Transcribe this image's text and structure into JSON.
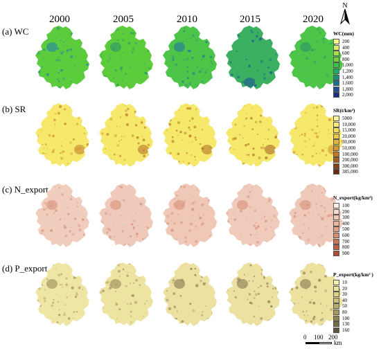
{
  "years": [
    "2000",
    "2005",
    "2010",
    "2015",
    "2020"
  ],
  "north_label": "N",
  "rows": [
    {
      "label": "(a) WC",
      "legend_title": "WC(mm)",
      "legend_values": [
        "200",
        "400",
        "600",
        "800",
        "1,000",
        "1,200",
        "1,400",
        "1,600",
        "1,800",
        "2,000"
      ],
      "legend_colors": [
        "#f7f58c",
        "#d6ee6a",
        "#a8e04a",
        "#72d13c",
        "#3cc24a",
        "#1fae64",
        "#17907a",
        "#1a6f8c",
        "#1e4d99",
        "#1b2f80"
      ],
      "fill": [
        "#5ccc3c",
        "#5ccc3c",
        "#4cc548",
        "#3bb060",
        "#4cc548"
      ],
      "accent": [
        "#1f7fb0",
        "#2a9070",
        "#1f6fa8",
        "#1a4f9a",
        "#2a9070"
      ]
    },
    {
      "label": "(b) SR",
      "legend_title": "SR(t/km²)",
      "legend_values": [
        "5000",
        "10,000",
        "15,000",
        "20,000",
        "30,000",
        "50,000",
        "100,000",
        "200,000",
        "300,000",
        "385,000"
      ],
      "legend_colors": [
        "#fbf4a0",
        "#f7ea7a",
        "#f1dc5c",
        "#ecc94a",
        "#e2b23c",
        "#d4982f",
        "#c07a27",
        "#a45c20",
        "#86421a",
        "#682d14"
      ],
      "fill": [
        "#f6e86a",
        "#f6e86a",
        "#f6e86a",
        "#f6e86a",
        "#f6e86a"
      ],
      "accent": [
        "#c07a27",
        "#b06a22",
        "#b06a22",
        "#a45c20",
        "#c98a2c"
      ]
    },
    {
      "label": "(c) N_export",
      "legend_title": "N_export(kg/km²)",
      "legend_values": [
        "100",
        "200",
        "300",
        "400",
        "500",
        "600",
        "700",
        "800",
        "900"
      ],
      "legend_colors": [
        "#fbeee8",
        "#f5dccf",
        "#efc9b8",
        "#e8b5a0",
        "#e0a088",
        "#d88a70",
        "#cd7359",
        "#c05d45",
        "#b04a35"
      ],
      "fill": [
        "#f0cdbd",
        "#efcaba",
        "#efc8b8",
        "#f0cbbb",
        "#efc9b9"
      ],
      "accent": [
        "#d48a72",
        "#d48a72",
        "#d48a72",
        "#d48a72",
        "#d48a72"
      ]
    },
    {
      "label": "(d) P_export",
      "legend_title": "P_export(kg/km² )",
      "legend_values": [
        "10",
        "20",
        "30",
        "40",
        "50",
        "80",
        "100",
        "130",
        "160"
      ],
      "legend_colors": [
        "#f5efae",
        "#ebe29c",
        "#ddd28a",
        "#cbbf7a",
        "#b8ab6c",
        "#a4965f",
        "#8f8152",
        "#796b46",
        "#62563a"
      ],
      "fill": [
        "#efe6a6",
        "#eee4a2",
        "#ece1a0",
        "#ece1a0",
        "#ece19f"
      ],
      "accent": [
        "#8f8152",
        "#8f8152",
        "#7d6f48",
        "#7d6f48",
        "#7d6f48"
      ]
    }
  ],
  "scale": {
    "labels": [
      "0",
      "100",
      "200"
    ],
    "unit": "km"
  }
}
